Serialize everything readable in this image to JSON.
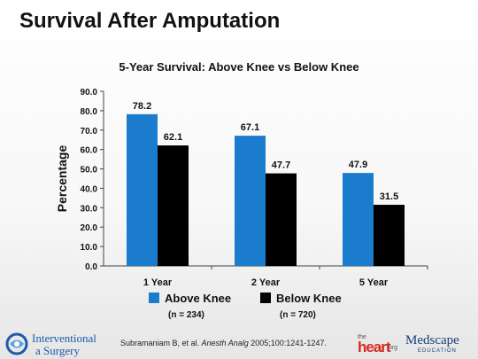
{
  "slide": {
    "title": "Survival After Amputation"
  },
  "chart_data": {
    "type": "bar",
    "title": "5-Year Survival: Above Knee vs Below Knee",
    "ylabel": "Percentage",
    "xlabel": "",
    "ylim": [
      0,
      90
    ],
    "yticks": [
      "0.0",
      "10.0",
      "20.0",
      "30.0",
      "40.0",
      "50.0",
      "60.0",
      "70.0",
      "80.0",
      "90.0"
    ],
    "categories": [
      "1 Year",
      "2 Year",
      "5 Year"
    ],
    "series": [
      {
        "name": "Above Knee",
        "note": "(n = 234)",
        "color": "#1b7ccd",
        "values": [
          78.2,
          67.1,
          47.9
        ],
        "labels": [
          "78.2",
          "67.1",
          "47.9"
        ]
      },
      {
        "name": "Below Knee",
        "note": "(n = 720)",
        "color": "#000000",
        "values": [
          62.1,
          47.7,
          31.5
        ],
        "labels": [
          "62.1",
          "47.7",
          "31.5"
        ]
      }
    ],
    "grid": false,
    "legend": "bottom"
  },
  "footer": {
    "logo_left_line1": "Interventional",
    "logo_left_line2": "a Surgery",
    "citation_authors": "Subramaniam B, et al. ",
    "citation_journal": "Anesth Analg",
    "citation_rest": " 2005;100:1241-1247.",
    "heart_the": "the",
    "heart_word": "heart",
    "heart_org": ".org",
    "medscape_name": "Medscape",
    "medscape_edu": "EDUCATION"
  }
}
